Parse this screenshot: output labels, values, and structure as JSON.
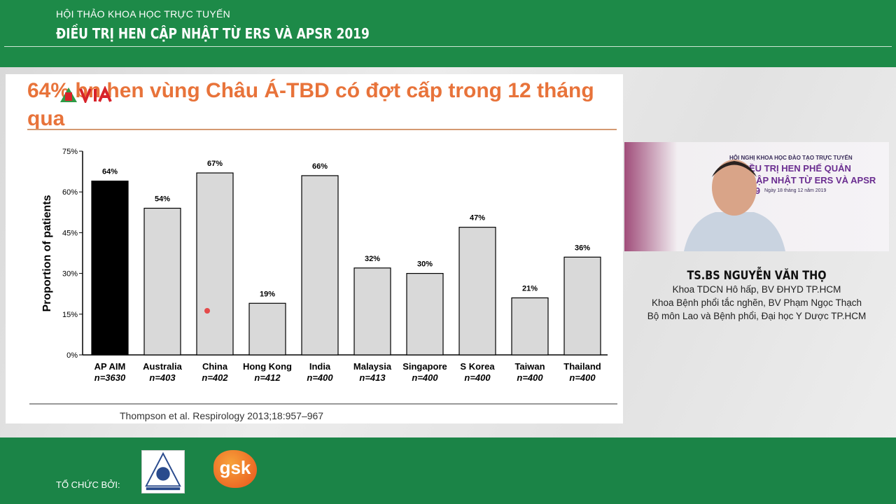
{
  "header": {
    "subtitle": "HỘI THẢO KHOA HỌC TRỰC TUYẾN",
    "title": "ĐIỀU TRỊ HEN CẬP NHẬT TỪ ERS VÀ APSR 2019"
  },
  "slide": {
    "title": "64% bn hen vùng Châu Á-TBD có đợt cấp trong 12 tháng qua",
    "logo_text": "VIA",
    "citation": "Thompson et al. Respirology 2013;18:957–967"
  },
  "chart_data": {
    "type": "bar",
    "title": "",
    "ylabel": "Proportion of patients",
    "xlabel": "",
    "ylim": [
      0,
      75
    ],
    "yticks": [
      "0%",
      "15%",
      "30%",
      "45%",
      "60%",
      "75%"
    ],
    "categories": [
      "AP AIM",
      "Australia",
      "China",
      "Hong Kong",
      "India",
      "Malaysia",
      "Singapore",
      "S Korea",
      "Taiwan",
      "Thailand"
    ],
    "sample_sizes": [
      "n=3630",
      "n=403",
      "n=402",
      "n=412",
      "n=400",
      "n=413",
      "n=400",
      "n=400",
      "n=400",
      "n=400"
    ],
    "values": [
      64,
      54,
      67,
      19,
      66,
      32,
      30,
      47,
      21,
      36
    ],
    "data_labels": [
      "64%",
      "54%",
      "67%",
      "19%",
      "66%",
      "32%",
      "30%",
      "47%",
      "21%",
      "36%"
    ],
    "colors": {
      "highlight": "#000000",
      "default": "#d9d9d9"
    },
    "grid": false
  },
  "video": {
    "event_line1": "HỘI NGHỊ KHOA HỌC ĐÀO TẠO TRỰC TUYẾN",
    "event_line2": "ĐIỀU TRỊ HEN PHẾ QUẢN",
    "event_line3": "G CẬP NHẬT TỪ ERS VÀ APSR 2019",
    "event_date": "Ngày 18 tháng 12 năm 2019"
  },
  "speaker": {
    "name": "TS.BS NGUYỄN VĂN THỌ",
    "affiliations": [
      "Khoa TDCN Hô hấp, BV ĐHYD TP.HCM",
      "Khoa Bệnh phổi tắc nghẽn, BV Phạm Ngọc Thạch",
      "Bộ môn Lao và Bệnh phổi, Đại học Y Dược TP.HCM"
    ]
  },
  "footer": {
    "organizer_label": "TỔ CHỨC BỞI:",
    "sponsor_logo_text": "gsk"
  },
  "colors": {
    "brand_green": "#1d8a48",
    "title_orange": "#e8733a"
  }
}
